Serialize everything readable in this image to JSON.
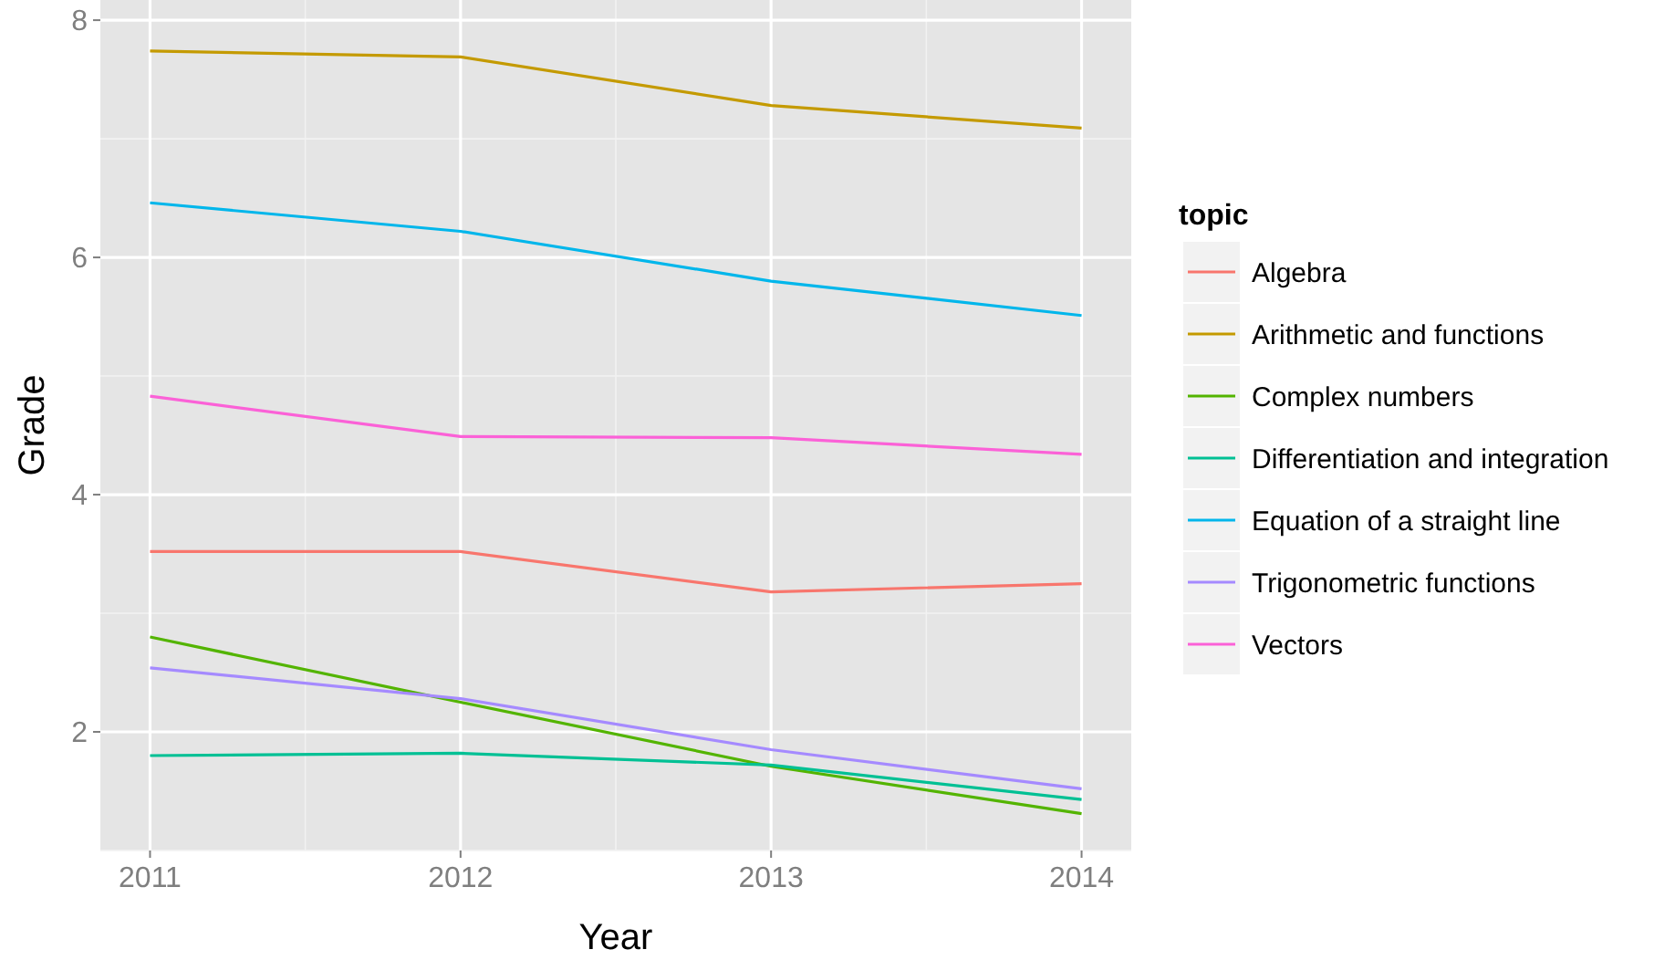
{
  "chart_data": {
    "type": "line",
    "xlabel": "Year",
    "ylabel": "Grade",
    "legend_title": "topic",
    "legend": "right",
    "grid": true,
    "x": [
      2011,
      2012,
      2013,
      2014
    ],
    "xlim": [
      2010.84,
      2014.16
    ],
    "xticks": [
      2011,
      2012,
      2013,
      2014
    ],
    "ylim": [
      1.0,
      8.17
    ],
    "yticks": [
      2,
      4,
      6,
      8
    ],
    "series": [
      {
        "name": "Algebra",
        "color": "#f8766d",
        "values": [
          3.52,
          3.52,
          3.18,
          3.25
        ]
      },
      {
        "name": "Arithmetic and functions",
        "color": "#c49a00",
        "values": [
          7.74,
          7.69,
          7.28,
          7.09
        ]
      },
      {
        "name": "Complex numbers",
        "color": "#53b400",
        "values": [
          2.8,
          2.25,
          1.71,
          1.31
        ]
      },
      {
        "name": "Differentiation and integration",
        "color": "#00c094",
        "values": [
          1.8,
          1.82,
          1.72,
          1.43
        ]
      },
      {
        "name": "Equation of a straight line",
        "color": "#00b6eb",
        "values": [
          6.46,
          6.22,
          5.8,
          5.51
        ]
      },
      {
        "name": "Trigonometric functions",
        "color": "#a58aff",
        "values": [
          2.54,
          2.28,
          1.85,
          1.52
        ]
      },
      {
        "name": "Vectors",
        "color": "#fb61d7",
        "values": [
          4.83,
          4.49,
          4.48,
          4.34
        ]
      }
    ]
  }
}
